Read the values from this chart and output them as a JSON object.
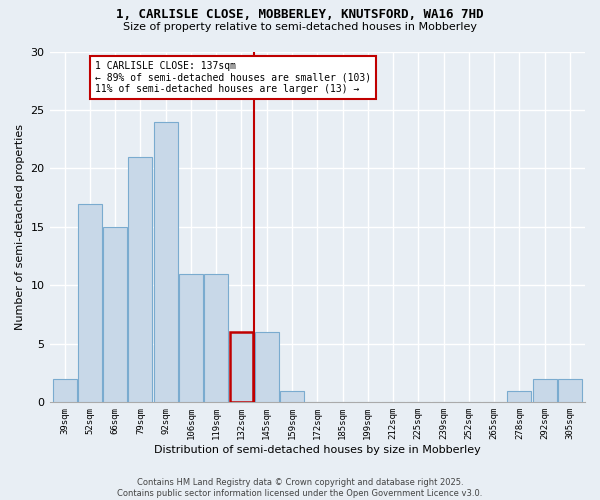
{
  "title1": "1, CARLISLE CLOSE, MOBBERLEY, KNUTSFORD, WA16 7HD",
  "title2": "Size of property relative to semi-detached houses in Mobberley",
  "xlabel": "Distribution of semi-detached houses by size in Mobberley",
  "ylabel": "Number of semi-detached properties",
  "footer": "Contains HM Land Registry data © Crown copyright and database right 2025.\nContains public sector information licensed under the Open Government Licence v3.0.",
  "categories": [
    "39sqm",
    "52sqm",
    "66sqm",
    "79sqm",
    "92sqm",
    "106sqm",
    "119sqm",
    "132sqm",
    "145sqm",
    "159sqm",
    "172sqm",
    "185sqm",
    "199sqm",
    "212sqm",
    "225sqm",
    "239sqm",
    "252sqm",
    "265sqm",
    "278sqm",
    "292sqm",
    "305sqm"
  ],
  "values": [
    2,
    17,
    15,
    21,
    24,
    11,
    11,
    6,
    6,
    1,
    0,
    0,
    0,
    0,
    0,
    0,
    0,
    0,
    1,
    2,
    2
  ],
  "bar_color": "#c8d8e8",
  "bar_edge_color": "#7aabcf",
  "highlight_bar_index": 7,
  "highlight_bar_edge_color": "#c00000",
  "vline_color": "#c00000",
  "annotation_title": "1 CARLISLE CLOSE: 137sqm",
  "annotation_line1": "← 89% of semi-detached houses are smaller (103)",
  "annotation_line2": "11% of semi-detached houses are larger (13) →",
  "annotation_box_color": "#ffffff",
  "annotation_box_edge": "#c00000",
  "ylim": [
    0,
    30
  ],
  "yticks": [
    0,
    5,
    10,
    15,
    20,
    25,
    30
  ],
  "background_color": "#e8eef4",
  "grid_color": "#ffffff",
  "title_fontsize": 9,
  "subtitle_fontsize": 8
}
